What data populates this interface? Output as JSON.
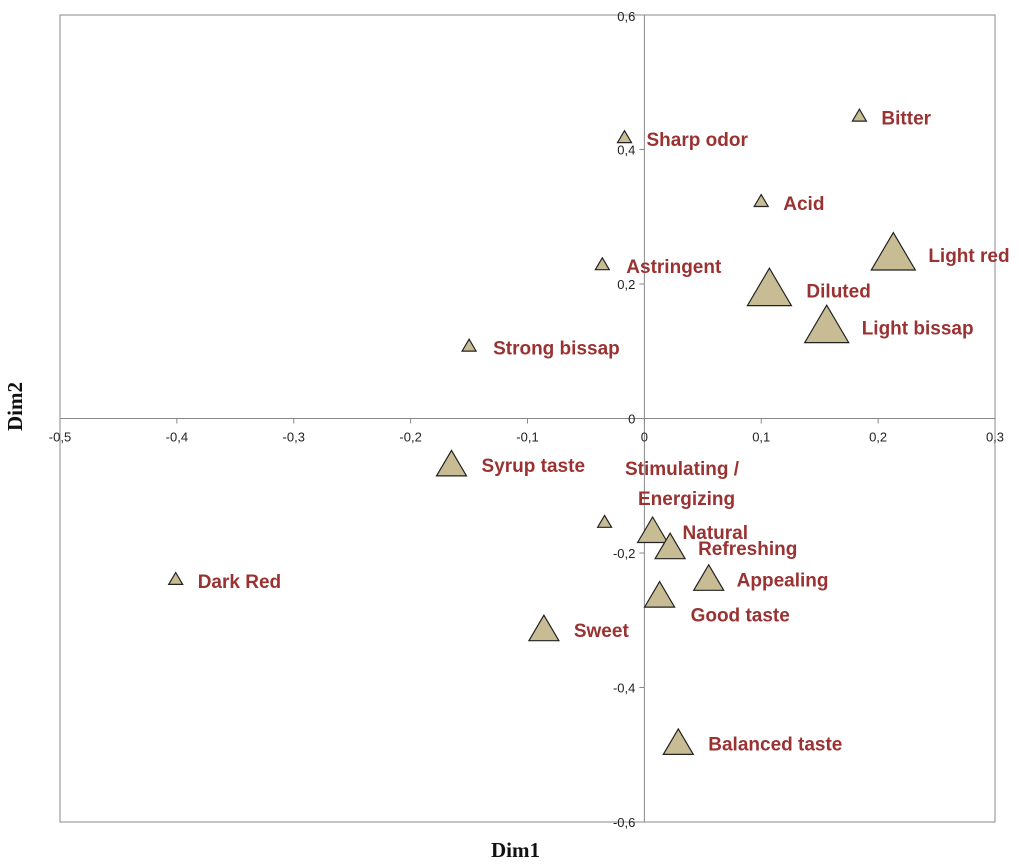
{
  "chart_data": {
    "type": "scatter",
    "xlabel": "Dim1",
    "ylabel": "Dim2",
    "xlim": [
      -0.5,
      0.3
    ],
    "ylim": [
      -0.6,
      0.6
    ],
    "x_ticks": [
      "-0,5",
      "-0,4",
      "-0,3",
      "-0,2",
      "-0,1",
      "0",
      "0,1",
      "0,2",
      "0,3"
    ],
    "y_ticks": [
      "0,6",
      "0,4",
      "0,2",
      "0",
      "-0,2",
      "-0,4",
      "-0,6"
    ],
    "grid": false,
    "marker": "triangle",
    "colors": {
      "marker_fill": "#c8bc94",
      "marker_stroke": "#222222",
      "label": "#9a3232"
    },
    "points": [
      {
        "label": "Bitter",
        "x": 0.184,
        "y": 0.449,
        "size": "small"
      },
      {
        "label": "Sharp odor",
        "x": -0.017,
        "y": 0.417,
        "size": "small"
      },
      {
        "label": "Acid",
        "x": 0.1,
        "y": 0.322,
        "size": "small"
      },
      {
        "label": "Light red",
        "x": 0.213,
        "y": 0.242,
        "size": "large"
      },
      {
        "label": "Astringent",
        "x": -0.036,
        "y": 0.228,
        "size": "small"
      },
      {
        "label": "Diluted",
        "x": 0.107,
        "y": 0.189,
        "size": "large"
      },
      {
        "label": "Light bissap",
        "x": 0.156,
        "y": 0.134,
        "size": "large"
      },
      {
        "label": "Strong bissap",
        "x": -0.15,
        "y": 0.107,
        "size": "small"
      },
      {
        "label": "Syrup taste",
        "x": -0.165,
        "y": -0.071,
        "size": "medium"
      },
      {
        "label": "Stimulating / Energizing",
        "x": -0.034,
        "y": -0.155,
        "size": "small"
      },
      {
        "label": "Natural",
        "x": 0.007,
        "y": -0.17,
        "size": "medium"
      },
      {
        "label": "Refreshing",
        "x": 0.022,
        "y": -0.194,
        "size": "medium"
      },
      {
        "label": "Appealing",
        "x": 0.055,
        "y": -0.241,
        "size": "medium"
      },
      {
        "label": "Good taste",
        "x": 0.013,
        "y": -0.266,
        "size": "medium"
      },
      {
        "label": "Dark Red",
        "x": -0.401,
        "y": -0.24,
        "size": "small"
      },
      {
        "label": "Sweet",
        "x": -0.086,
        "y": -0.316,
        "size": "medium"
      },
      {
        "label": "Balanced taste",
        "x": 0.029,
        "y": -0.485,
        "size": "medium"
      }
    ]
  }
}
